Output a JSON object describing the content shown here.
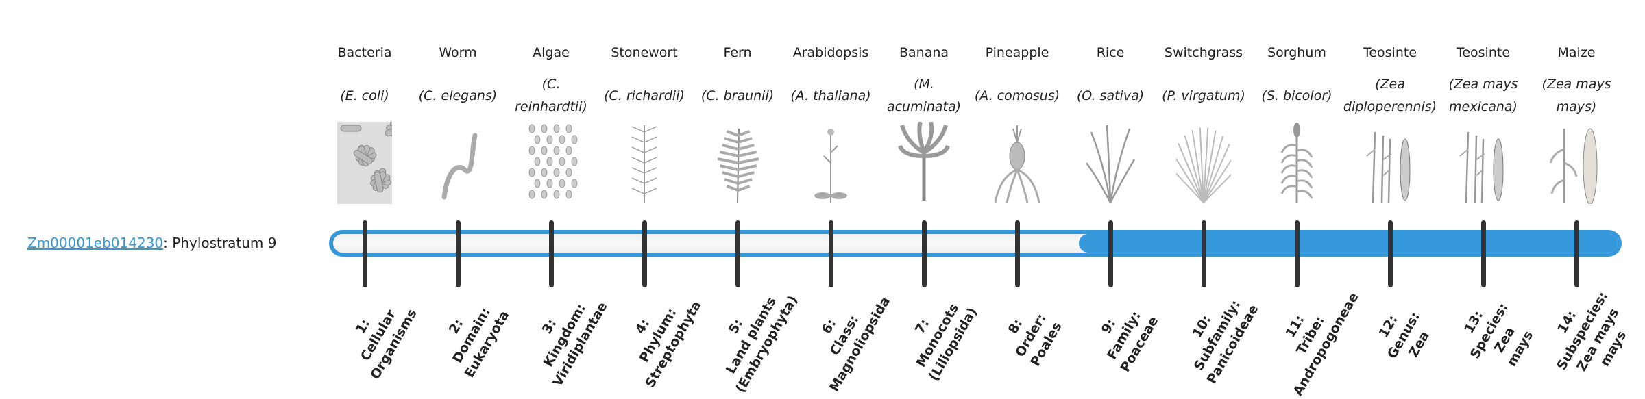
{
  "gene": {
    "id": "Zm00001eb014230",
    "suffix": ": Phylostratum 9"
  },
  "colors": {
    "accent": "#3598db",
    "tick": "#333333",
    "bar_background": "#f5f5f5"
  },
  "progress": {
    "phylostratum": 9,
    "total": 14
  },
  "organisms": [
    {
      "common": "Bacteria",
      "sci": "(E. coli)",
      "icon": "bacteria-icon"
    },
    {
      "common": "Worm",
      "sci": "(C. elegans)",
      "icon": "worm-icon"
    },
    {
      "common": "Algae",
      "sci": "(C. reinhardtii)",
      "icon": "algae-icon"
    },
    {
      "common": "Stonewort",
      "sci": "(C. richardii)",
      "icon": "stonewort-icon"
    },
    {
      "common": "Fern",
      "sci": "(C. braunii)",
      "icon": "fern-icon"
    },
    {
      "common": "Arabidopsis",
      "sci": "(A. thaliana)",
      "icon": "arabidopsis-icon"
    },
    {
      "common": "Banana",
      "sci": "(M. acuminata)",
      "icon": "banana-icon"
    },
    {
      "common": "Pineapple",
      "sci": "(A. comosus)",
      "icon": "pineapple-icon"
    },
    {
      "common": "Rice",
      "sci": "(O. sativa)",
      "icon": "rice-icon"
    },
    {
      "common": "Switchgrass",
      "sci": "(P. virgatum)",
      "icon": "switchgrass-icon"
    },
    {
      "common": "Sorghum",
      "sci": "(S. bicolor)",
      "icon": "sorghum-icon"
    },
    {
      "common": "Teosinte",
      "sci": "(Zea diploperennis)",
      "icon": "teosinte-icon"
    },
    {
      "common": "Teosinte",
      "sci": "(Zea mays mexicana)",
      "icon": "teosinte-icon"
    },
    {
      "common": "Maize",
      "sci": "(Zea mays mays)",
      "icon": "maize-icon"
    }
  ],
  "strata": [
    "1:\nCellular\nOrganisms",
    "2:\nDomain:\nEukaryota",
    "3:\nKingdom:\nViridiplantae",
    "4:\nPhylum:\nStreptophyta",
    "5:\nLand plants\n(Embryophyta)",
    "6:\nClass:\nMagnoliopsida",
    "7:\nMonocots\n(Liliopsida)",
    "8:\nOrder:\nPoales",
    "9:\nFamily:\nPoaceae",
    "10:\nSubfamily:\nPanicoideae",
    "11:\nTribe:\nAndropogoneae",
    "12:\nGenus:\nZea",
    "13:\nSpecies:\nZea\nmays",
    "14:\nSubspecies:\nZea mays\nmays"
  ]
}
